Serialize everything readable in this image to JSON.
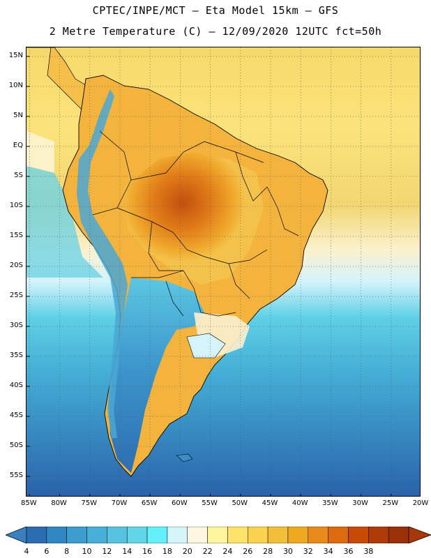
{
  "header": {
    "line1": "CPTEC/INPE/MCT –  Eta Model 15km – GFS",
    "line2": "2 Metre Temperature (C) – 12/09/2020 12UTC fct=50h"
  },
  "map": {
    "lat_labels": [
      "15N",
      "10N",
      "5N",
      "EQ",
      "5S",
      "10S",
      "15S",
      "20S",
      "25S",
      "30S",
      "35S",
      "40S",
      "45S",
      "50S",
      "55S"
    ],
    "lon_labels": [
      "85W",
      "80W",
      "75W",
      "70W",
      "65W",
      "60W",
      "55W",
      "50W",
      "45W",
      "40W",
      "35W",
      "30W",
      "25W",
      "20W"
    ],
    "lat_range": [
      -58,
      17
    ],
    "lon_range": [
      -85.5,
      -20
    ]
  },
  "legend": {
    "levels": [
      "4",
      "6",
      "8",
      "10",
      "12",
      "14",
      "16",
      "18",
      "20",
      "22",
      "24",
      "26",
      "28",
      "30",
      "32",
      "34",
      "36",
      "38"
    ],
    "colors": [
      "#2c6cb0",
      "#2f86c0",
      "#3c9dce",
      "#48b0d8",
      "#55c3e0",
      "#62d6e8",
      "#63f0f8",
      "#d4f6fb",
      "#fbf6dd",
      "#fff59c",
      "#ffe26a",
      "#fbd250",
      "#f2bf3b",
      "#efa920",
      "#e88b1a",
      "#de6a10",
      "#c74a0b",
      "#b03a08",
      "#9a3008"
    ]
  }
}
